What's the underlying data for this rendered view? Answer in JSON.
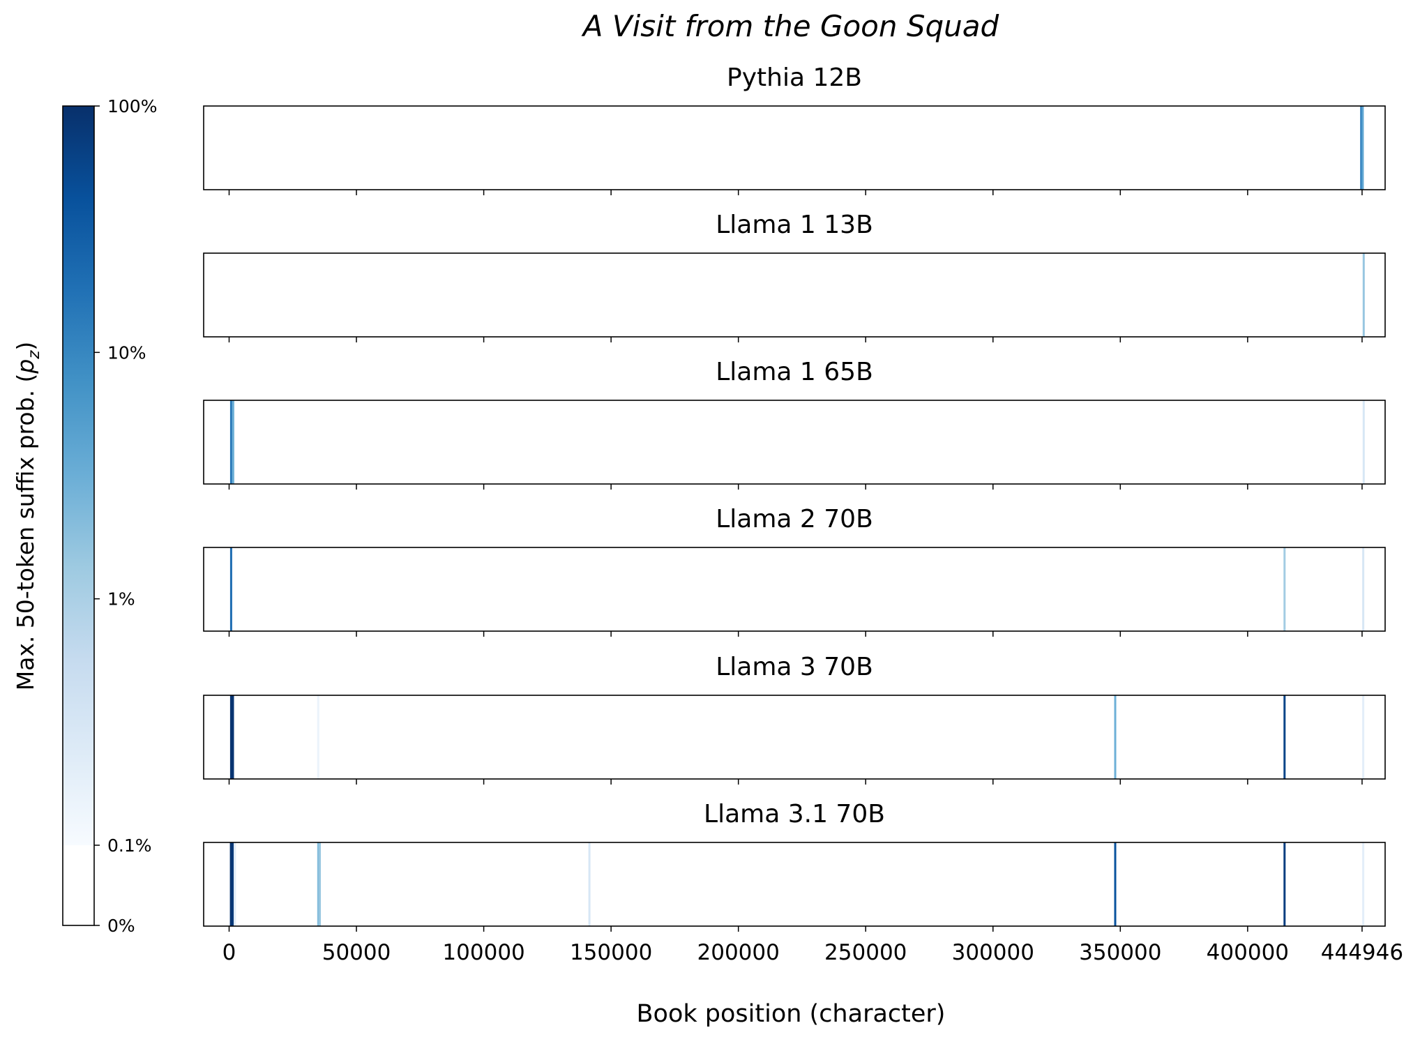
{
  "chart_data": {
    "type": "heatmap",
    "title": "A Visit from the Goon Squad",
    "xlabel": "Book position (character)",
    "xlim": [
      -10000,
      454000
    ],
    "book_length": 444946,
    "xticks": [
      0,
      50000,
      100000,
      150000,
      200000,
      250000,
      300000,
      350000,
      400000,
      444946
    ],
    "xtick_labels": [
      "0",
      "50000",
      "100000",
      "150000",
      "200000",
      "250000",
      "300000",
      "350000",
      "400000",
      "444946"
    ],
    "colorbar": {
      "label": "Max. 50-token suffix prob. (p_z)",
      "label_main": "Max. 50-token suffix prob. (",
      "label_var": "p",
      "label_sub": "z",
      "label_close": ")",
      "colormap": "Blues",
      "scale": "log",
      "ticks": [
        0,
        0.001,
        0.01,
        0.1,
        1
      ],
      "tick_labels": [
        "0%",
        "0.1%",
        "1%",
        "10%",
        "100%"
      ],
      "stops": [
        "#f7fbff",
        "#deebf7",
        "#c6dbef",
        "#9ecae1",
        "#6baed6",
        "#4292c6",
        "#2171b5",
        "#08519c",
        "#08306b"
      ]
    },
    "panels": [
      {
        "title": "Pythia 12B",
        "regions": [
          {
            "x": 444600,
            "p": 0.12
          },
          {
            "x": 445200,
            "p": 0.04
          }
        ]
      },
      {
        "title": "Llama 1 13B",
        "regions": [
          {
            "x": 445600,
            "p": 0.015
          }
        ]
      },
      {
        "title": "Llama 1 65B",
        "regions": [
          {
            "x": 800,
            "p": 0.15
          },
          {
            "x": 1600,
            "p": 0.03
          },
          {
            "x": 445600,
            "p": 0.003
          }
        ]
      },
      {
        "title": "Llama 2 70B",
        "regions": [
          {
            "x": 800,
            "p": 0.2
          },
          {
            "x": 414500,
            "p": 0.012
          },
          {
            "x": 445400,
            "p": 0.003
          }
        ]
      },
      {
        "title": "Llama 3 70B",
        "regions": [
          {
            "x": 800,
            "p": 0.9
          },
          {
            "x": 1500,
            "p": 0.9
          },
          {
            "x": 35000,
            "p": 0.0015
          },
          {
            "x": 348000,
            "p": 0.03
          },
          {
            "x": 414500,
            "p": 0.6
          },
          {
            "x": 445400,
            "p": 0.002
          }
        ]
      },
      {
        "title": "Llama 3.1 70B",
        "regions": [
          {
            "x": 700,
            "p": 0.9
          },
          {
            "x": 1400,
            "p": 0.8
          },
          {
            "x": 2300,
            "p": 0.002
          },
          {
            "x": 35000,
            "p": 0.02
          },
          {
            "x": 35600,
            "p": 0.015
          },
          {
            "x": 141500,
            "p": 0.003
          },
          {
            "x": 348000,
            "p": 0.4
          },
          {
            "x": 414500,
            "p": 0.7
          },
          {
            "x": 445400,
            "p": 0.002
          }
        ]
      }
    ]
  }
}
